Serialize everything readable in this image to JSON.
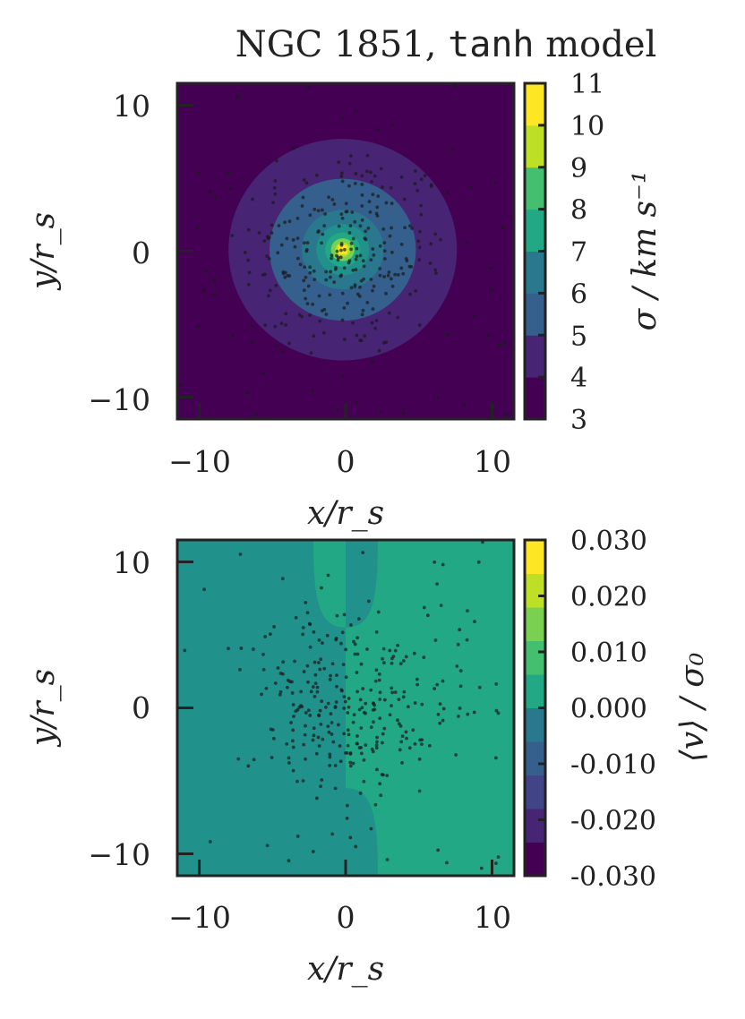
{
  "chart_data": [
    {
      "type": "heatmap",
      "title_prefix": "NGC 1851, ",
      "title_code": "tanh",
      "title_suffix": " model",
      "xlabel": "x/r_s",
      "ylabel": "y/r_s",
      "xlim": [
        -11.5,
        11.5
      ],
      "ylim": [
        -11.5,
        11.5
      ],
      "x_ticks": [
        "−10",
        "0",
        "10"
      ],
      "y_ticks": [
        "10",
        "0",
        "−10"
      ],
      "x_tick_values": [
        -10,
        0,
        10
      ],
      "y_tick_values": [
        10,
        0,
        -10
      ],
      "colorbar_label": "σ / km s⁻¹",
      "colorbar_range": [
        3,
        11
      ],
      "colorbar_ticks": [
        "11",
        "10",
        "9",
        "8",
        "7",
        "6",
        "5",
        "4",
        "3"
      ],
      "colorbar_tick_values": [
        11,
        10,
        9,
        8,
        7,
        6,
        5,
        4,
        3
      ],
      "contour_levels": [
        3,
        4,
        5,
        6,
        7,
        8,
        9,
        10,
        11
      ],
      "contour_rings": [
        {
          "radius": 7.8,
          "level": 4
        },
        {
          "radius": 5.0,
          "level": 5
        },
        {
          "radius": 2.8,
          "level": 6
        },
        {
          "radius": 1.8,
          "level": 7
        },
        {
          "radius": 1.2,
          "level": 8
        },
        {
          "radius": 0.8,
          "level": 9
        },
        {
          "radius": 0.5,
          "level": 10
        }
      ],
      "center": [
        -0.2,
        0.1
      ],
      "colormap": "viridis"
    },
    {
      "type": "heatmap",
      "xlabel": "x/r_s",
      "ylabel": "y/r_s",
      "xlim": [
        -11.5,
        11.5
      ],
      "ylim": [
        -11.5,
        11.5
      ],
      "x_ticks": [
        "−10",
        "0",
        "10"
      ],
      "y_ticks": [
        "10",
        "0",
        "−10"
      ],
      "x_tick_values": [
        -10,
        0,
        10
      ],
      "y_tick_values": [
        10,
        0,
        -10
      ],
      "colorbar_label": "⟨v⟩ / σ₀",
      "colorbar_range": [
        -0.03,
        0.03
      ],
      "colorbar_ticks": [
        "0.030",
        "0.020",
        "0.010",
        "0.000",
        "-0.010",
        "-0.020",
        "-0.030"
      ],
      "colorbar_tick_values": [
        0.03,
        0.02,
        0.01,
        0.0,
        -0.01,
        -0.02,
        -0.03
      ],
      "background_level": 0.002,
      "right_half_level": 0.006,
      "left_half_level": 0.002,
      "lobes": [
        {
          "x": [
            -2.2,
            2.2
          ],
          "y": [
            5.5,
            11.5
          ],
          "left_level": 0.007,
          "right_level": -0.001
        },
        {
          "x": [
            -2.2,
            2.2
          ],
          "y": [
            -11.5,
            -5.5
          ],
          "left_level": 0.002,
          "right_level": 0.002
        }
      ],
      "colormap": "viridis"
    }
  ],
  "colors": {
    "axis": "#222222",
    "points": "#1a1a1a",
    "viridis": [
      "#440154",
      "#482475",
      "#414487",
      "#355f8d",
      "#2a788e",
      "#21918c",
      "#22a884",
      "#44bf70",
      "#7ad151",
      "#bddf26",
      "#fde725"
    ]
  }
}
